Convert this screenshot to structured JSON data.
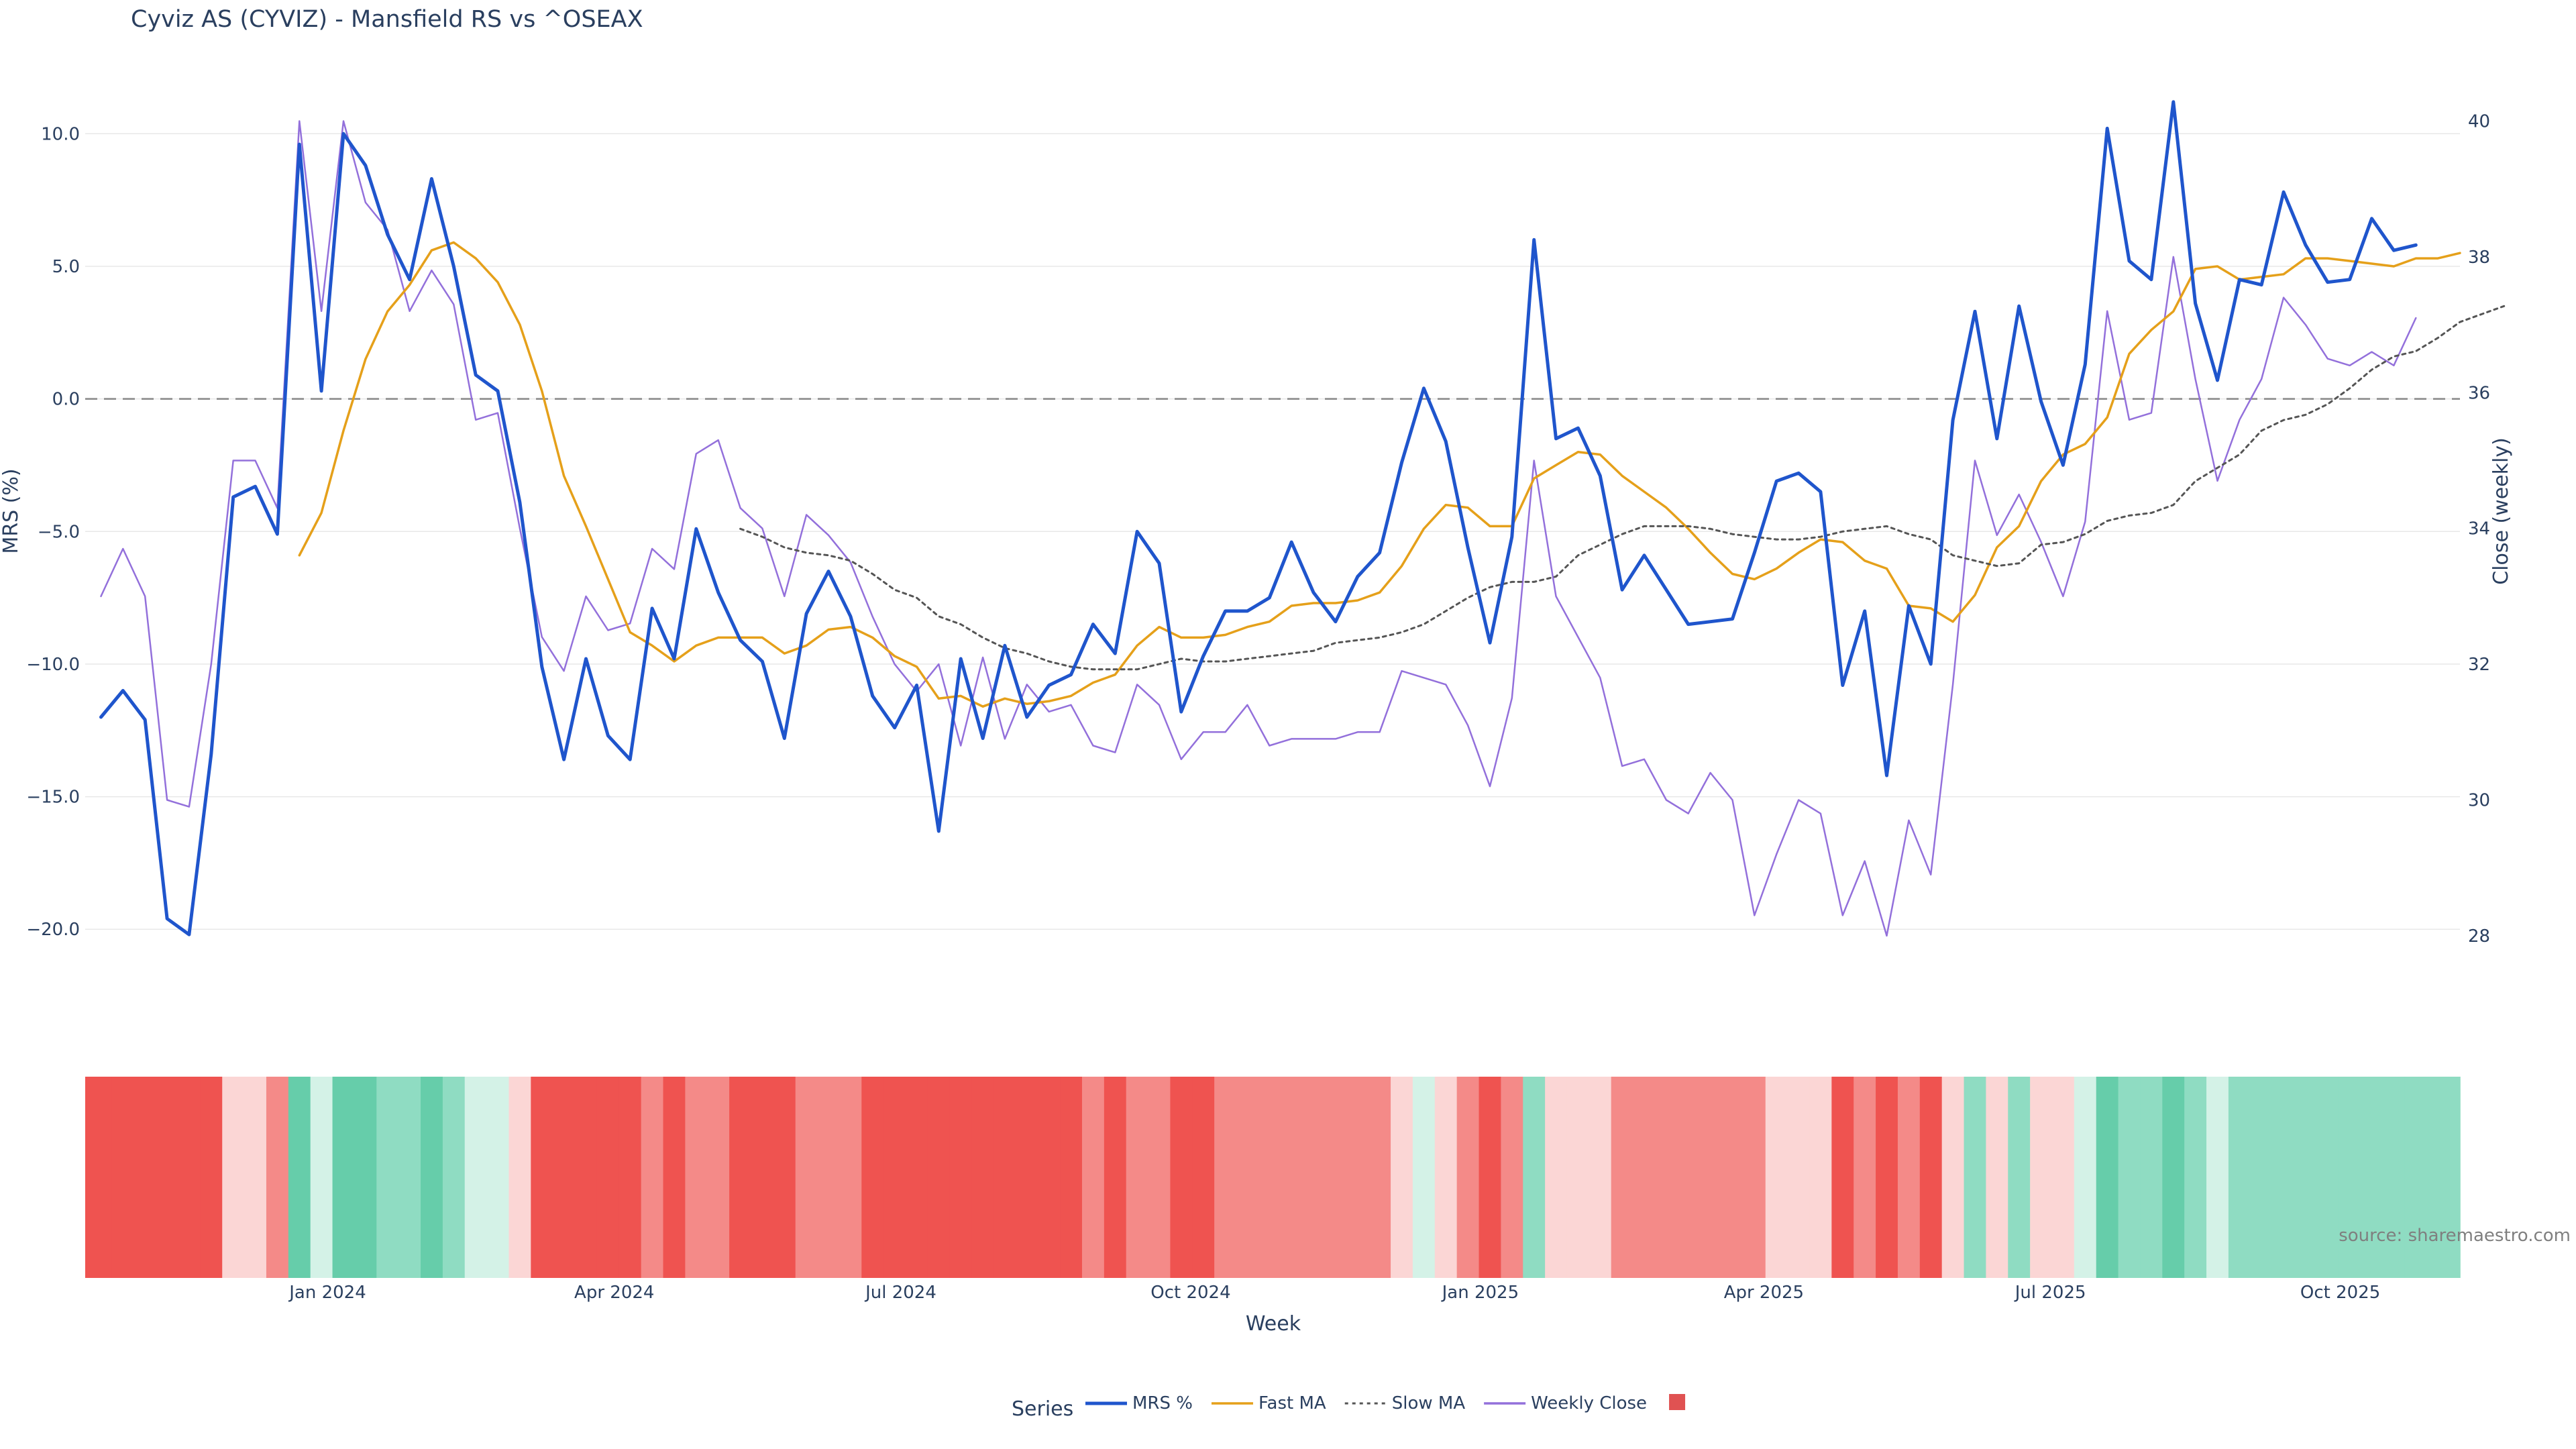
{
  "chart_data": {
    "type": "line",
    "title": "Cyviz AS (CYVIZ) - Mansfield RS vs ^OSEAX",
    "xlabel": "Week",
    "ylabel": "MRS (%)",
    "y2label": "Close (weekly)",
    "ylim": [
      -20.5,
      11.5
    ],
    "y_ticks": [
      10.0,
      5.0,
      0.0,
      -5.0,
      -10.0,
      -15.0,
      -20.0
    ],
    "y_tick_labels": [
      "10.0",
      "5.0",
      "0.0",
      "−5.0",
      "−10.0",
      "−15.0",
      "−20.0"
    ],
    "y2lim": [
      27.9,
      40.4
    ],
    "y2_ticks": [
      28,
      30,
      32,
      34,
      36,
      38,
      40
    ],
    "x_ticks": [
      "2024-01-01",
      "2024-04-01",
      "2024-07-01",
      "2024-10-01",
      "2025-01-01",
      "2025-04-01",
      "2025-07-01",
      "2025-10-01"
    ],
    "x_tick_labels": [
      "Jan 2024",
      "Apr 2024",
      "Jul 2024",
      "Oct 2024",
      "Jan 2025",
      "Apr 2025",
      "Jul 2025",
      "Oct 2025"
    ],
    "x_range": [
      "2023-10-16",
      "2025-11-08"
    ],
    "x_start": "2023-10-21",
    "zero_line": 0,
    "grid": true,
    "legend_title": "Series",
    "legend_placement": "bottom-center",
    "series": [
      {
        "name": "MRS %",
        "color": "#1f55cc",
        "style": "solid",
        "axis": "y",
        "values": [
          -12.0,
          -11.0,
          -12.1,
          -19.6,
          -20.2,
          -13.4,
          -3.7,
          -3.3,
          -5.1,
          9.6,
          0.3,
          10.0,
          8.8,
          6.2,
          4.5,
          8.3,
          5.0,
          0.9,
          0.3,
          -3.9,
          -10.1,
          -13.6,
          -9.8,
          -12.7,
          -13.6,
          -7.9,
          -9.8,
          -4.9,
          -7.3,
          -9.1,
          -9.9,
          -12.8,
          -8.1,
          -6.5,
          -8.2,
          -11.2,
          -12.4,
          -10.8,
          -16.3,
          -9.8,
          -12.8,
          -9.3,
          -12.0,
          -10.8,
          -10.4,
          -8.5,
          -9.6,
          -5.0,
          -6.2,
          -11.8,
          -9.7,
          -8.0,
          -8.0,
          -7.5,
          -5.4,
          -7.3,
          -8.4,
          -6.7,
          -5.8,
          -2.4,
          0.4,
          -1.6,
          -5.6,
          -9.2,
          -5.2,
          6.0,
          -1.5,
          -1.1,
          -2.9,
          -7.2,
          -5.9,
          -7.2,
          -8.5,
          -8.4,
          -8.3,
          -5.8,
          -3.1,
          -2.8,
          -3.5,
          -10.8,
          -8.0,
          -14.2,
          -7.8,
          -10.0,
          -0.8,
          3.3,
          -1.5,
          3.5,
          -0.1,
          -2.5,
          1.3,
          10.2,
          5.2,
          4.5,
          11.2,
          3.6,
          0.7,
          4.5,
          4.3,
          7.8,
          5.8,
          4.4,
          4.5,
          6.8,
          5.6,
          5.8
        ]
      },
      {
        "name": "Fast MA",
        "color": "#e5a01a",
        "style": "solid",
        "axis": "y",
        "start_index": 9,
        "values": [
          -5.9,
          -4.3,
          -1.2,
          1.5,
          3.3,
          4.3,
          5.6,
          5.9,
          5.3,
          4.4,
          2.8,
          0.3,
          -2.9,
          -4.8,
          -6.8,
          -8.8,
          -9.3,
          -9.9,
          -9.3,
          -9.0,
          -9.0,
          -9.0,
          -9.6,
          -9.3,
          -8.7,
          -8.6,
          -9.0,
          -9.7,
          -10.1,
          -11.3,
          -11.2,
          -11.6,
          -11.3,
          -11.5,
          -11.4,
          -11.2,
          -10.7,
          -10.4,
          -9.3,
          -8.6,
          -9.0,
          -9.0,
          -8.9,
          -8.6,
          -8.4,
          -7.8,
          -7.7,
          -7.7,
          -7.6,
          -7.3,
          -6.3,
          -4.9,
          -4.0,
          -4.1,
          -4.8,
          -4.8,
          -3.0,
          -2.5,
          -2.0,
          -2.1,
          -2.9,
          -3.5,
          -4.1,
          -4.9,
          -5.8,
          -6.6,
          -6.8,
          -6.4,
          -5.8,
          -5.3,
          -5.4,
          -6.1,
          -6.4,
          -7.8,
          -7.9,
          -8.4,
          -7.4,
          -5.6,
          -4.8,
          -3.1,
          -2.1,
          -1.7,
          -0.7,
          1.7,
          2.6,
          3.3,
          4.9,
          5.0,
          4.5,
          4.6,
          4.7,
          5.3,
          5.3,
          5.2,
          5.1,
          5.0,
          5.3,
          5.3,
          5.5
        ]
      },
      {
        "name": "Slow MA",
        "color": "#555555",
        "style": "dotted",
        "axis": "y",
        "start_index": 29,
        "values": [
          -4.9,
          -5.2,
          -5.6,
          -5.8,
          -5.9,
          -6.1,
          -6.6,
          -7.2,
          -7.5,
          -8.2,
          -8.5,
          -9.0,
          -9.4,
          -9.6,
          -9.9,
          -10.1,
          -10.2,
          -10.2,
          -10.2,
          -10.0,
          -9.8,
          -9.9,
          -9.9,
          -9.8,
          -9.7,
          -9.6,
          -9.5,
          -9.2,
          -9.1,
          -9.0,
          -8.8,
          -8.5,
          -8.0,
          -7.5,
          -7.1,
          -6.9,
          -6.9,
          -6.7,
          -5.9,
          -5.5,
          -5.1,
          -4.8,
          -4.8,
          -4.8,
          -4.9,
          -5.1,
          -5.2,
          -5.3,
          -5.3,
          -5.2,
          -5.0,
          -4.9,
          -4.8,
          -5.1,
          -5.3,
          -5.9,
          -6.1,
          -6.3,
          -6.2,
          -5.5,
          -5.4,
          -5.1,
          -4.6,
          -4.4,
          -4.3,
          -4.0,
          -3.1,
          -2.6,
          -2.1,
          -1.2,
          -0.8,
          -0.6,
          -0.2,
          0.4,
          1.1,
          1.6,
          1.8,
          2.3,
          2.9,
          3.2,
          3.5
        ]
      },
      {
        "name": "Weekly Close",
        "color": "#9370db",
        "style": "solid",
        "axis": "y2",
        "values": [
          33.0,
          33.7,
          33.0,
          30.0,
          29.9,
          32.0,
          35.0,
          35.0,
          34.3,
          40.0,
          37.2,
          40.0,
          38.8,
          38.4,
          37.2,
          37.8,
          37.3,
          35.6,
          35.7,
          34.0,
          32.4,
          31.9,
          33.0,
          32.5,
          32.6,
          33.7,
          33.4,
          35.1,
          35.3,
          34.3,
          34.0,
          33.0,
          34.2,
          33.9,
          33.5,
          32.7,
          32.0,
          31.6,
          32.0,
          30.8,
          32.1,
          30.9,
          31.7,
          31.3,
          31.4,
          30.8,
          30.7,
          31.7,
          31.4,
          30.6,
          31.0,
          31.0,
          31.4,
          30.8,
          30.9,
          30.9,
          30.9,
          31.0,
          31.0,
          31.9,
          31.8,
          31.7,
          31.1,
          30.2,
          31.5,
          35.0,
          33.0,
          32.4,
          31.8,
          30.5,
          30.6,
          30.0,
          29.8,
          30.4,
          30.0,
          28.3,
          29.2,
          30.0,
          29.8,
          28.3,
          29.1,
          28.0,
          29.7,
          28.9,
          31.7,
          35.0,
          33.9,
          34.5,
          33.8,
          33.0,
          34.1,
          37.2,
          35.6,
          35.7,
          38.0,
          36.2,
          34.7,
          35.6,
          36.2,
          37.4,
          37.0,
          36.5,
          36.4,
          36.6,
          36.4,
          37.1
        ]
      }
    ],
    "heatmap_colors": {
      "strong_negative": "#ef5350",
      "negative": "#f48a88",
      "weak_negative": "#fbd6d5",
      "weak_positive": "#d4f2e7",
      "positive": "#8fdcc2",
      "strong_positive": "#66cdaa"
    },
    "heatmap_series_color": "#e05252",
    "source": "source: sharemaestro.com"
  }
}
